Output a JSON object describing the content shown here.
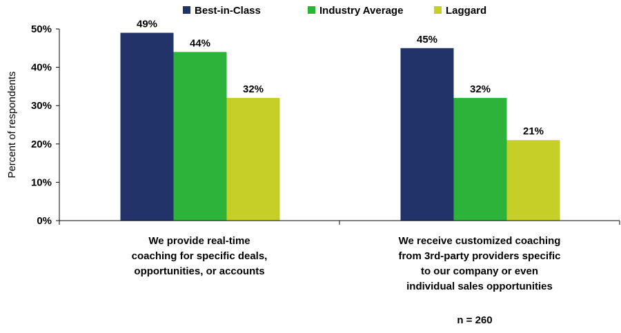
{
  "chart_data": {
    "type": "bar",
    "ylabel": "Percent of respondents",
    "ylim": [
      0,
      50
    ],
    "yticks": [
      "0%",
      "10%",
      "20%",
      "30%",
      "40%",
      "50%"
    ],
    "ytick_values": [
      0,
      10,
      20,
      30,
      40,
      50
    ],
    "legend_position": "top",
    "categories": [
      [
        "We provide real-time",
        "coaching for specific deals,",
        "opportunities, or accounts"
      ],
      [
        "We receive customized coaching",
        "from 3rd-party providers specific",
        "to our company or even",
        "individual sales opportunities"
      ]
    ],
    "series": [
      {
        "name": "Best-in-Class",
        "color": "#22336a",
        "values": [
          49,
          45
        ],
        "labels": [
          "49%",
          "45%"
        ]
      },
      {
        "name": "Industry Average",
        "color": "#2eb33a",
        "values": [
          44,
          32
        ],
        "labels": [
          "44%",
          "32%"
        ]
      },
      {
        "name": "Laggard",
        "color": "#c5cf27",
        "values": [
          32,
          21
        ],
        "labels": [
          "32%",
          "21%"
        ]
      }
    ],
    "note": "n = 260"
  }
}
